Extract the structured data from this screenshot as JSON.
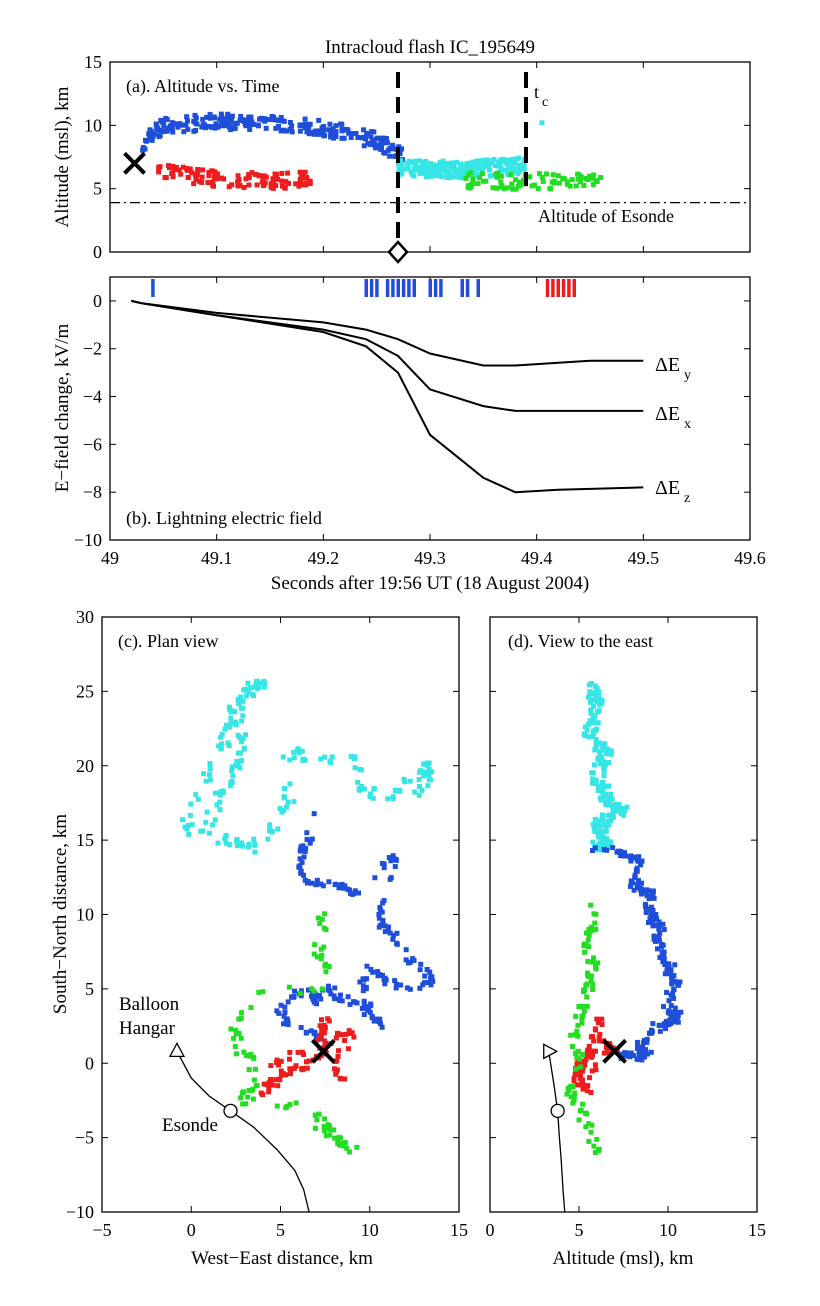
{
  "colors": {
    "blue": "#1f4fd9",
    "red": "#ee1c1c",
    "cyan": "#36e6e6",
    "green": "#22dd22",
    "black": "#000000"
  },
  "figure_title": "Intracloud flash IC_195649",
  "chart_data": [
    {
      "id": "a",
      "type": "scatter",
      "title": "(a). Altitude vs. Time",
      "xlabel": "",
      "ylabel": "Altitude (msl), km",
      "xlim": [
        49,
        49.6
      ],
      "ylim": [
        0,
        15
      ],
      "yticks": [
        "0",
        "5",
        "10",
        "15"
      ],
      "reference_lines": {
        "esonde_altitude": 3.9,
        "esonde_label": "Altitude of Esonde",
        "vertical_dashed_1": 49.27,
        "vertical_dashed_2": 49.39,
        "tc_label": "t",
        "tc_sub": "c"
      },
      "initiation_marker": {
        "x": 49.023,
        "y": 7.0,
        "shape": "x"
      },
      "diamond_marker": {
        "x": 49.27,
        "y": 0
      },
      "series": [
        {
          "color": "blue",
          "x_range": [
            49.03,
            49.275
          ],
          "y_levels": [
            [
              49.03,
              8.5
            ],
            [
              49.05,
              10.0
            ],
            [
              49.1,
              10.3
            ],
            [
              49.15,
              10.2
            ],
            [
              49.2,
              9.8
            ],
            [
              49.25,
              8.8
            ],
            [
              49.275,
              7.5
            ]
          ]
        },
        {
          "color": "red",
          "x_range": [
            49.045,
            49.19
          ],
          "y_levels": [
            [
              49.045,
              6.4
            ],
            [
              49.1,
              5.8
            ],
            [
              49.15,
              5.6
            ],
            [
              49.19,
              5.8
            ]
          ]
        },
        {
          "color": "cyan",
          "x_range": [
            49.27,
            49.39
          ],
          "y_levels": [
            [
              49.27,
              6.6
            ],
            [
              49.33,
              6.5
            ],
            [
              49.39,
              6.8
            ]
          ]
        },
        {
          "color": "green",
          "x_range": [
            49.33,
            49.46
          ],
          "y_levels": [
            [
              49.33,
              5.6
            ],
            [
              49.4,
              5.6
            ],
            [
              49.46,
              5.5
            ]
          ]
        }
      ]
    },
    {
      "id": "b",
      "type": "line",
      "title": "(b). Lightning electric field",
      "xlabel": "Seconds after 19:56 UT (18 August 2004)",
      "ylabel": "E−field change, kV/m",
      "xlim": [
        49,
        49.6
      ],
      "ylim": [
        -10,
        1.0
      ],
      "xticks": [
        "49",
        "49.1",
        "49.2",
        "49.3",
        "49.4",
        "49.5",
        "49.6"
      ],
      "yticks": [
        "0",
        "−2",
        "−4",
        "−6",
        "−8",
        "−10"
      ],
      "series": [
        {
          "name": "ΔE",
          "sub": "y",
          "x": [
            49.02,
            49.03,
            49.1,
            49.2,
            49.24,
            49.27,
            49.3,
            49.35,
            49.38,
            49.45,
            49.5
          ],
          "y": [
            0,
            -0.1,
            -0.5,
            -0.9,
            -1.2,
            -1.6,
            -2.2,
            -2.7,
            -2.7,
            -2.5,
            -2.5
          ]
        },
        {
          "name": "ΔE",
          "sub": "x",
          "x": [
            49.02,
            49.03,
            49.1,
            49.2,
            49.24,
            49.27,
            49.3,
            49.35,
            49.38,
            49.45,
            49.5
          ],
          "y": [
            0,
            -0.1,
            -0.6,
            -1.2,
            -1.6,
            -2.3,
            -3.7,
            -4.4,
            -4.6,
            -4.6,
            -4.6
          ]
        },
        {
          "name": "ΔE",
          "sub": "z",
          "x": [
            49.02,
            49.03,
            49.1,
            49.2,
            49.24,
            49.27,
            49.3,
            49.35,
            49.38,
            49.42,
            49.5
          ],
          "y": [
            0,
            -0.1,
            -0.6,
            -1.3,
            -1.9,
            -3.0,
            -5.6,
            -7.4,
            -8.0,
            -7.9,
            -7.8
          ]
        }
      ],
      "event_marks": {
        "blue_x": [
          49.04,
          49.24,
          49.245,
          49.25,
          49.26,
          49.265,
          49.27,
          49.275,
          49.28,
          49.285,
          49.3,
          49.305,
          49.31,
          49.33,
          49.335,
          49.345
        ],
        "red_x": [
          49.41,
          49.415,
          49.42,
          49.425,
          49.43,
          49.435
        ]
      }
    },
    {
      "id": "c",
      "type": "scatter",
      "title": "(c). Plan view",
      "xlabel": "West−East distance, km",
      "ylabel": "South−North distance, km",
      "xlim": [
        -5,
        15
      ],
      "ylim": [
        -10,
        30
      ],
      "xticks": [
        "−5",
        "0",
        "5",
        "10",
        "15"
      ],
      "yticks": [
        "−10",
        "−5",
        "0",
        "5",
        "10",
        "15",
        "20",
        "25",
        "30"
      ],
      "annotations": {
        "hangar_line1": "Balloon",
        "hangar_line2": "Hangar",
        "esonde": "Esonde"
      },
      "balloon_hangar": {
        "x": -0.8,
        "y": 0.8
      },
      "esonde_position": {
        "x": 2.2,
        "y": -3.2
      },
      "initiation_marker": {
        "x": 7.4,
        "y": 0.8
      },
      "balloon_track": {
        "x": [
          -0.8,
          0.0,
          1.0,
          2.2,
          3.5,
          4.8,
          5.8,
          6.3,
          6.6
        ],
        "y": [
          0.8,
          -1.0,
          -2.2,
          -3.2,
          -4.3,
          -5.8,
          -7.2,
          -8.5,
          -10.0
        ]
      },
      "series": [
        {
          "color": "cyan",
          "path": [
            [
              1.0,
              16.0
            ],
            [
              1.5,
              18.0
            ],
            [
              2.5,
              19.5
            ],
            [
              2.8,
              21.5
            ],
            [
              2.6,
              23.5
            ],
            [
              3.0,
              25.2
            ],
            [
              4.0,
              25.5
            ],
            [
              2.5,
              24.0
            ],
            [
              2.0,
              22.0
            ],
            [
              1.0,
              19.5
            ],
            [
              0.0,
              17.0
            ],
            [
              -0.5,
              15.5
            ],
            [
              2.0,
              15.0
            ],
            [
              3.5,
              14.5
            ],
            [
              4.5,
              15.5
            ],
            [
              5.5,
              17.5
            ],
            [
              5.5,
              21.0
            ],
            [
              7.0,
              20.5
            ],
            [
              9.0,
              20.5
            ],
            [
              9.5,
              19.0
            ],
            [
              10.5,
              17.5
            ],
            [
              12.0,
              18.5
            ],
            [
              13.0,
              20.0
            ],
            [
              13.5,
              19.5
            ],
            [
              12.5,
              18.0
            ]
          ],
          "spread": 0.35
        },
        {
          "color": "blue",
          "path": [
            [
              7.0,
              17.0
            ],
            [
              6.5,
              15.0
            ],
            [
              6.0,
              13.5
            ],
            [
              6.5,
              12.2
            ],
            [
              8.0,
              12.0
            ],
            [
              9.0,
              11.5
            ],
            [
              10.5,
              13.0
            ],
            [
              11.5,
              14.0
            ],
            [
              11.0,
              11.0
            ],
            [
              10.5,
              9.5
            ],
            [
              11.5,
              8.5
            ],
            [
              12.0,
              7.0
            ],
            [
              13.0,
              6.5
            ],
            [
              13.5,
              5.5
            ],
            [
              12.5,
              5.0
            ],
            [
              11.0,
              5.5
            ],
            [
              10.0,
              6.5
            ],
            [
              9.5,
              5.0
            ],
            [
              10.0,
              3.5
            ],
            [
              10.5,
              2.5
            ],
            [
              9.5,
              4.0
            ],
            [
              8.0,
              4.5
            ],
            [
              7.5,
              5.5
            ],
            [
              7.0,
              4.0
            ],
            [
              6.5,
              5.0
            ],
            [
              5.5,
              4.5
            ],
            [
              5.0,
              3.5
            ],
            [
              5.5,
              2.5
            ],
            [
              6.5,
              2.0
            ],
            [
              7.5,
              1.5
            ]
          ],
          "spread": 0.25
        },
        {
          "color": "red",
          "path": [
            [
              7.6,
              3.0
            ],
            [
              7.2,
              2.0
            ],
            [
              7.4,
              1.0
            ],
            [
              6.8,
              0.0
            ],
            [
              6.0,
              -0.3
            ],
            [
              5.5,
              -0.5
            ],
            [
              5.0,
              -1.0
            ],
            [
              4.4,
              -1.5
            ],
            [
              4.0,
              -2.0
            ],
            [
              5.0,
              0.5
            ],
            [
              6.5,
              0.5
            ],
            [
              8.0,
              1.5
            ],
            [
              9.0,
              2.0
            ],
            [
              7.8,
              -0.5
            ],
            [
              8.5,
              -1.0
            ]
          ],
          "spread": 0.3
        },
        {
          "color": "green",
          "path": [
            [
              7.0,
              11.0
            ],
            [
              7.5,
              9.0
            ],
            [
              7.0,
              7.5
            ],
            [
              7.5,
              6.5
            ],
            [
              7.0,
              5.0
            ],
            [
              3.5,
              5.0
            ],
            [
              2.5,
              2.5
            ],
            [
              2.5,
              1.0
            ],
            [
              3.5,
              0.5
            ],
            [
              3.5,
              -1.5
            ],
            [
              2.8,
              -2.5
            ],
            [
              7.0,
              -3.0
            ],
            [
              7.5,
              -4.0
            ],
            [
              7.8,
              -5.0
            ],
            [
              8.5,
              -5.5
            ],
            [
              9.0,
              -5.8
            ],
            [
              6.8,
              -3.5
            ],
            [
              7.2,
              -5.0
            ]
          ],
          "spread": 0.3
        }
      ]
    },
    {
      "id": "d",
      "type": "scatter",
      "title": "(d). View to the east",
      "xlabel": "Altitude (msl), km",
      "ylabel": "",
      "xlim": [
        0,
        15
      ],
      "ylim": [
        -10,
        30
      ],
      "xticks": [
        "0",
        "5",
        "10",
        "15"
      ],
      "balloon_hangar": {
        "x": 3.3,
        "y": 0.8
      },
      "esonde_position": {
        "x": 3.8,
        "y": -3.2
      },
      "initiation_marker": {
        "x": 7.0,
        "y": 0.8
      },
      "balloon_track": {
        "x": [
          3.3,
          3.6,
          3.8,
          3.9,
          4.0,
          4.1,
          4.2
        ],
        "y": [
          0.8,
          -1.5,
          -3.2,
          -5.0,
          -6.5,
          -8.5,
          -10.0
        ]
      },
      "series": [
        {
          "color": "cyan",
          "path": [
            [
              5.8,
              25.5
            ],
            [
              6.0,
              24.0
            ],
            [
              5.5,
              22.0
            ],
            [
              6.5,
              21.0
            ],
            [
              6.0,
              19.0
            ],
            [
              6.8,
              17.5
            ],
            [
              7.5,
              17.0
            ],
            [
              6.0,
              16.0
            ],
            [
              6.5,
              15.0
            ],
            [
              6.0,
              14.5
            ]
          ],
          "spread": 0.35
        },
        {
          "color": "blue",
          "path": [
            [
              6.0,
              14.5
            ],
            [
              7.5,
              14.2
            ],
            [
              8.5,
              13.5
            ],
            [
              8.0,
              12.0
            ],
            [
              9.0,
              11.5
            ],
            [
              9.0,
              10.0
            ],
            [
              9.5,
              9.0
            ],
            [
              9.5,
              7.5
            ],
            [
              10.0,
              6.5
            ],
            [
              10.5,
              5.5
            ],
            [
              10.0,
              4.0
            ],
            [
              10.5,
              3.0
            ],
            [
              9.5,
              2.5
            ],
            [
              8.5,
              1.5
            ],
            [
              8.5,
              0.8
            ],
            [
              9.0,
              0.5
            ],
            [
              7.5,
              0.5
            ]
          ],
          "spread": 0.3
        },
        {
          "color": "red",
          "path": [
            [
              6.2,
              3.0
            ],
            [
              6.0,
              2.0
            ],
            [
              5.8,
              1.0
            ],
            [
              5.5,
              0.5
            ],
            [
              5.0,
              0.0
            ],
            [
              5.0,
              -0.5
            ],
            [
              4.8,
              -1.0
            ],
            [
              5.5,
              -2.0
            ],
            [
              6.5,
              1.5
            ],
            [
              7.0,
              0.8
            ]
          ],
          "spread": 0.25
        },
        {
          "color": "green",
          "path": [
            [
              6.0,
              11.0
            ],
            [
              5.8,
              9.0
            ],
            [
              5.5,
              8.0
            ],
            [
              5.8,
              6.5
            ],
            [
              5.5,
              5.0
            ],
            [
              5.0,
              3.5
            ],
            [
              4.8,
              2.0
            ],
            [
              5.0,
              0.5
            ],
            [
              4.5,
              -1.5
            ],
            [
              5.0,
              -3.0
            ],
            [
              5.5,
              -4.0
            ],
            [
              5.8,
              -5.5
            ],
            [
              6.0,
              -6.0
            ]
          ],
          "spread": 0.3
        }
      ]
    }
  ]
}
